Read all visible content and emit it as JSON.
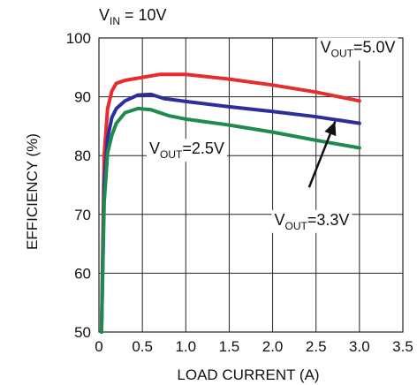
{
  "chart_data": {
    "type": "line",
    "title_prefix": "V",
    "title_sub": "IN",
    "title_suffix": " = 10V",
    "xlabel": "LOAD CURRENT (A)",
    "ylabel": "EFFICIENCY (%)",
    "xlim": [
      0,
      3.5
    ],
    "ylim": [
      50,
      100
    ],
    "xticks": [
      "0",
      "0.5",
      "1.0",
      "1.5",
      "2.0",
      "2.5",
      "3.0",
      "3.5"
    ],
    "xtick_values": [
      0,
      0.5,
      1.0,
      1.5,
      2.0,
      2.5,
      3.0,
      3.5
    ],
    "yticks": [
      "50",
      "60",
      "70",
      "80",
      "90",
      "100"
    ],
    "ytick_values": [
      50,
      60,
      70,
      80,
      90,
      100
    ],
    "grid": true,
    "series": [
      {
        "name_prefix": "V",
        "name_sub": "OUT",
        "name_suffix": "=5.0V",
        "color": "#e52d2d",
        "x": [
          0.03,
          0.06,
          0.1,
          0.15,
          0.2,
          0.3,
          0.5,
          0.7,
          1.0,
          1.5,
          2.0,
          2.5,
          3.0
        ],
        "y": [
          50,
          80,
          88,
          91,
          92.3,
          92.8,
          93.3,
          93.8,
          93.8,
          93.0,
          92.0,
          90.8,
          89.3
        ]
      },
      {
        "name_prefix": "V",
        "name_sub": "OUT",
        "name_suffix": "=3.3V",
        "color": "#2e2e9a",
        "x": [
          0.03,
          0.06,
          0.1,
          0.15,
          0.2,
          0.3,
          0.45,
          0.6,
          0.75,
          1.0,
          1.5,
          2.0,
          2.5,
          3.0
        ],
        "y": [
          50,
          75,
          83,
          86.5,
          88,
          89.3,
          90.3,
          90.4,
          89.7,
          89.2,
          88.3,
          87.5,
          86.6,
          85.5
        ]
      },
      {
        "name_prefix": "V",
        "name_sub": "OUT",
        "name_suffix": "=2.5V",
        "color": "#1f8a4e",
        "x": [
          0.03,
          0.06,
          0.1,
          0.15,
          0.2,
          0.3,
          0.45,
          0.6,
          0.8,
          1.0,
          1.5,
          2.0,
          2.5,
          3.0
        ],
        "y": [
          50,
          72,
          80.5,
          83.5,
          85.5,
          87.3,
          88,
          87.8,
          86.8,
          86.2,
          85.2,
          84,
          82.6,
          81.3
        ]
      }
    ],
    "annotations": [
      {
        "series": 0,
        "x": 2.55,
        "y": 97.5
      },
      {
        "series": 2,
        "x": 0.58,
        "y": 80.3
      },
      {
        "series": 1,
        "x": 2.02,
        "y": 68.2,
        "arrow_from": [
          2.42,
          74.6
        ],
        "arrow_to": [
          2.72,
          85.8
        ]
      }
    ]
  }
}
